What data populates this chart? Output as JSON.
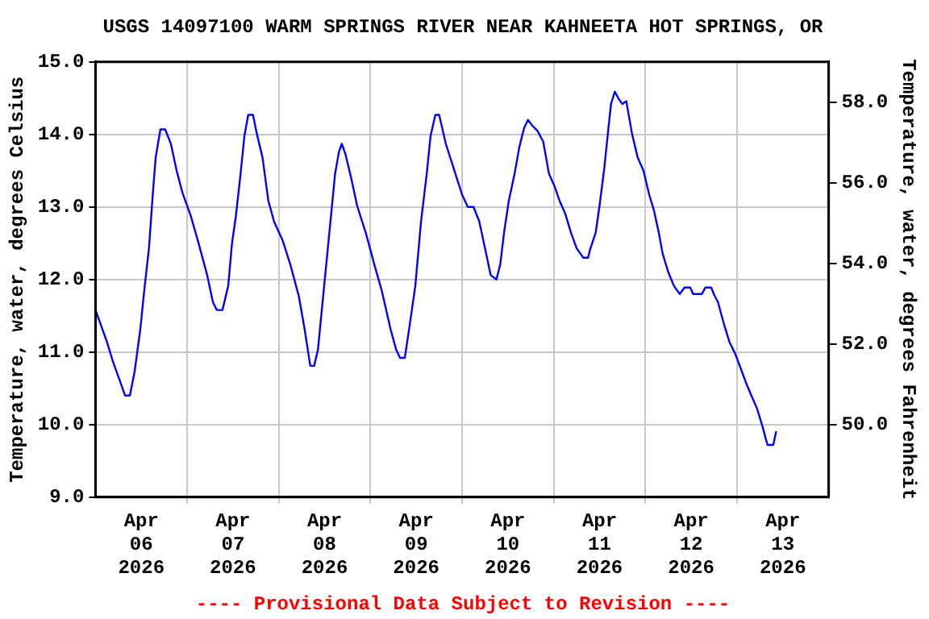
{
  "chart_data": {
    "type": "line",
    "title": "USGS 14097100 WARM SPRINGS RIVER NEAR KAHNEETA HOT SPRINGS, OR",
    "ylabel": "Temperature, water, degrees Celsius",
    "y2label": "Temperature, water, degrees Fahrenheit",
    "annotations": [
      "---- Provisional Data Subject to Revision ----"
    ],
    "xlim": [
      "2026-04-06T00:00",
      "2026-04-14T00:00"
    ],
    "xticks": [
      {
        "value": "2026-04-06T12:00",
        "label": "Apr\n06\n2026"
      },
      {
        "value": "2026-04-07T00:00",
        "label": null
      },
      {
        "value": "2026-04-07T12:00",
        "label": "Apr\n07\n2026"
      },
      {
        "value": "2026-04-08T00:00",
        "label": null
      },
      {
        "value": "2026-04-08T12:00",
        "label": "Apr\n08\n2026"
      },
      {
        "value": "2026-04-09T00:00",
        "label": null
      },
      {
        "value": "2026-04-09T12:00",
        "label": "Apr\n09\n2026"
      },
      {
        "value": "2026-04-10T00:00",
        "label": null
      },
      {
        "value": "2026-04-10T12:00",
        "label": "Apr\n10\n2026"
      },
      {
        "value": "2026-04-11T00:00",
        "label": null
      },
      {
        "value": "2026-04-11T12:00",
        "label": "Apr\n11\n2026"
      },
      {
        "value": "2026-04-12T00:00",
        "label": null
      },
      {
        "value": "2026-04-12T12:00",
        "label": "Apr\n12\n2026"
      },
      {
        "value": "2026-04-13T00:00",
        "label": null
      },
      {
        "value": "2026-04-13T12:00",
        "label": "Apr\n13\n2026"
      }
    ],
    "ylim": [
      9.0,
      15.0
    ],
    "yticks": [
      {
        "value": 9,
        "label": "9.0"
      },
      {
        "value": 10,
        "label": "10.0"
      },
      {
        "value": 11,
        "label": "11.0"
      },
      {
        "value": 12,
        "label": "12.0"
      },
      {
        "value": 13,
        "label": "13.0"
      },
      {
        "value": 14,
        "label": "14.0"
      },
      {
        "value": 15,
        "label": "15.0"
      }
    ],
    "y2lim": [
      48.2,
      59.0
    ],
    "y2ticks": [
      {
        "value": 50,
        "label": "50.0"
      },
      {
        "value": 52,
        "label": "52.0"
      },
      {
        "value": 54,
        "label": "54.0"
      },
      {
        "value": 56,
        "label": "56.0"
      },
      {
        "value": 58,
        "label": "58.0"
      }
    ],
    "grid": true,
    "legend": false,
    "marker": "none",
    "line_style": "solid",
    "series": [
      {
        "color": "#0000ff",
        "x": [
          "2026-04-06T00:00",
          "2026-04-06T01:30",
          "2026-04-06T03:00",
          "2026-04-06T04:30",
          "2026-04-06T06:45",
          "2026-04-06T07:45",
          "2026-04-06T09:00",
          "2026-04-06T10:15",
          "2026-04-06T11:45",
          "2026-04-06T12:45",
          "2026-04-06T14:00",
          "2026-04-06T15:00",
          "2026-04-06T15:45",
          "2026-04-06T17:00",
          "2026-04-06T18:15",
          "2026-04-06T19:45",
          "2026-04-06T21:15",
          "2026-04-06T22:45",
          "2026-04-07T01:00",
          "2026-04-07T03:00",
          "2026-04-07T05:15",
          "2026-04-07T06:45",
          "2026-04-07T07:45",
          "2026-04-07T09:15",
          "2026-04-07T10:45",
          "2026-04-07T11:45",
          "2026-04-07T12:45",
          "2026-04-07T14:00",
          "2026-04-07T15:00",
          "2026-04-07T16:00",
          "2026-04-07T17:15",
          "2026-04-07T18:15",
          "2026-04-07T19:45",
          "2026-04-07T21:15",
          "2026-04-07T22:45",
          "2026-04-08T01:00",
          "2026-04-08T03:00",
          "2026-04-08T05:15",
          "2026-04-08T06:45",
          "2026-04-08T08:15",
          "2026-04-08T09:15",
          "2026-04-08T10:15",
          "2026-04-08T11:45",
          "2026-04-08T13:15",
          "2026-04-08T14:45",
          "2026-04-08T15:45",
          "2026-04-08T16:30",
          "2026-04-08T17:30",
          "2026-04-08T19:00",
          "2026-04-08T20:30",
          "2026-04-08T22:45",
          "2026-04-09T01:00",
          "2026-04-09T03:00",
          "2026-04-09T05:15",
          "2026-04-09T06:45",
          "2026-04-09T07:45",
          "2026-04-09T09:00",
          "2026-04-09T10:15",
          "2026-04-09T11:45",
          "2026-04-09T13:15",
          "2026-04-09T14:45",
          "2026-04-09T15:45",
          "2026-04-09T17:00",
          "2026-04-09T18:00",
          "2026-04-09T19:45",
          "2026-04-09T22:00",
          "2026-04-10T00:00",
          "2026-04-10T01:30",
          "2026-04-10T03:00",
          "2026-04-10T04:30",
          "2026-04-10T06:00",
          "2026-04-10T07:30",
          "2026-04-10T09:00",
          "2026-04-10T10:00",
          "2026-04-10T11:00",
          "2026-04-10T12:15",
          "2026-04-10T13:45",
          "2026-04-10T15:00",
          "2026-04-10T16:15",
          "2026-04-10T17:15",
          "2026-04-10T18:15",
          "2026-04-10T19:45",
          "2026-04-10T21:15",
          "2026-04-10T22:45",
          "2026-04-11T00:15",
          "2026-04-11T01:30",
          "2026-04-11T03:00",
          "2026-04-11T04:30",
          "2026-04-11T06:00",
          "2026-04-11T07:45",
          "2026-04-11T09:00",
          "2026-04-11T09:30",
          "2026-04-11T11:00",
          "2026-04-11T12:00",
          "2026-04-11T13:15",
          "2026-04-11T14:15",
          "2026-04-11T15:00",
          "2026-04-11T16:00",
          "2026-04-11T17:00",
          "2026-04-11T18:00",
          "2026-04-11T19:00",
          "2026-04-11T20:30",
          "2026-04-11T22:00",
          "2026-04-11T23:30",
          "2026-04-12T01:00",
          "2026-04-12T02:15",
          "2026-04-12T03:30",
          "2026-04-12T04:30",
          "2026-04-12T06:00",
          "2026-04-12T07:30",
          "2026-04-12T09:00",
          "2026-04-12T10:15",
          "2026-04-12T11:45",
          "2026-04-12T12:30",
          "2026-04-12T14:45",
          "2026-04-12T15:45",
          "2026-04-12T17:15",
          "2026-04-12T18:00",
          "2026-04-12T19:00",
          "2026-04-12T20:30",
          "2026-04-12T22:00",
          "2026-04-12T23:30",
          "2026-04-13T01:00",
          "2026-04-13T02:15",
          "2026-04-13T03:45",
          "2026-04-13T05:15",
          "2026-04-13T06:45",
          "2026-04-13T07:30",
          "2026-04-13T08:00",
          "2026-04-13T09:30",
          "2026-04-13T10:15"
        ],
        "values": [
          11.58,
          11.36,
          11.14,
          10.88,
          10.55,
          10.4,
          10.4,
          10.73,
          11.32,
          11.84,
          12.43,
          13.17,
          13.68,
          14.07,
          14.07,
          13.87,
          13.5,
          13.2,
          12.87,
          12.5,
          12.06,
          11.69,
          11.58,
          11.58,
          11.91,
          12.5,
          12.87,
          13.46,
          13.98,
          14.27,
          14.27,
          14.01,
          13.68,
          13.09,
          12.8,
          12.54,
          12.21,
          11.77,
          11.32,
          10.81,
          10.81,
          11.03,
          11.84,
          12.65,
          13.46,
          13.76,
          13.87,
          13.72,
          13.39,
          13.02,
          12.65,
          12.21,
          11.84,
          11.32,
          11.03,
          10.92,
          10.92,
          11.36,
          11.91,
          12.8,
          13.46,
          13.98,
          14.27,
          14.27,
          13.87,
          13.5,
          13.17,
          13.0,
          13.0,
          12.8,
          12.43,
          12.06,
          12.0,
          12.21,
          12.65,
          13.09,
          13.46,
          13.83,
          14.09,
          14.2,
          14.13,
          14.05,
          13.9,
          13.46,
          13.28,
          13.09,
          12.91,
          12.65,
          12.43,
          12.3,
          12.3,
          12.41,
          12.65,
          13.02,
          13.54,
          14.05,
          14.42,
          14.59,
          14.49,
          14.42,
          14.46,
          14.01,
          13.68,
          13.5,
          13.17,
          12.95,
          12.65,
          12.36,
          12.1,
          11.91,
          11.8,
          11.89,
          11.89,
          11.8,
          11.8,
          11.89,
          11.89,
          11.79,
          11.69,
          11.4,
          11.14,
          10.98,
          10.77,
          10.59,
          10.4,
          10.22,
          9.96,
          9.81,
          9.72,
          9.72,
          9.91
        ]
      }
    ]
  }
}
